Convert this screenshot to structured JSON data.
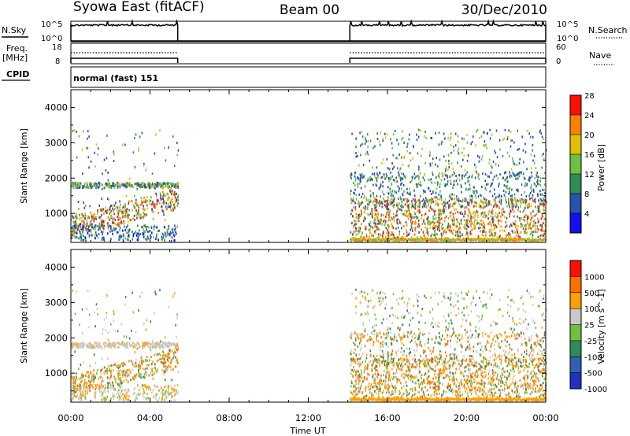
{
  "header": {
    "title_left": "Syowa East (fitACF)",
    "title_center": "Beam 00",
    "title_right": "30/Dec/2010"
  },
  "panels": {
    "nsky_label": "N.Sky",
    "nsky_ticks": [
      "10^5",
      "10^0"
    ],
    "nsearch_label": "N.Search",
    "nsearch_ticks": [
      "10^5",
      "10^0"
    ],
    "freq_label_1": "Freq.",
    "freq_label_2": "[MHz]",
    "freq_ticks": [
      "18",
      "8"
    ],
    "nave_label": "Nave",
    "nave_ticks": [
      "60",
      "0"
    ],
    "cpid_label": "CPID",
    "cpid_text": "normal (fast) 151"
  },
  "chart_data": [
    {
      "type": "heatmap",
      "name": "power",
      "ylabel": "Slant Range [km]",
      "xlabel": "",
      "ylim": [
        180,
        4500
      ],
      "yticks": [
        "1000",
        "2000",
        "3000",
        "4000"
      ],
      "xlim": [
        0,
        24
      ],
      "colorbar_label": "Power [dB]",
      "colorbar_ticks": [
        "4",
        "8",
        "12",
        "16",
        "20",
        "24",
        "28"
      ],
      "colors": [
        "#1010f0",
        "#2850b0",
        "#2e8b57",
        "#70c040",
        "#e0c000",
        "#ff8000",
        "#ff1000"
      ],
      "data_gap_hours": [
        5.4,
        14.1
      ]
    },
    {
      "type": "heatmap",
      "name": "velocity",
      "ylabel": "Slant Range [km]",
      "xlabel": "Time UT",
      "ylim": [
        180,
        4500
      ],
      "yticks": [
        "1000",
        "2000",
        "3000",
        "4000"
      ],
      "xlim": [
        0,
        24
      ],
      "xticks": [
        "00:00",
        "04:00",
        "08:00",
        "12:00",
        "16:00",
        "20:00",
        "00:00"
      ],
      "colorbar_label": "Velocity [m s^-1]",
      "colorbar_ticks": [
        "1000",
        "500",
        "100",
        "25",
        "-25",
        "-100",
        "-500",
        "-1000"
      ],
      "colors": [
        "#2030c0",
        "#3060b0",
        "#2e8b57",
        "#70c040",
        "#c8c8c8",
        "#ffa000",
        "#ff7000",
        "#ff1000"
      ],
      "data_gap_hours": [
        5.4,
        14.1
      ]
    }
  ]
}
